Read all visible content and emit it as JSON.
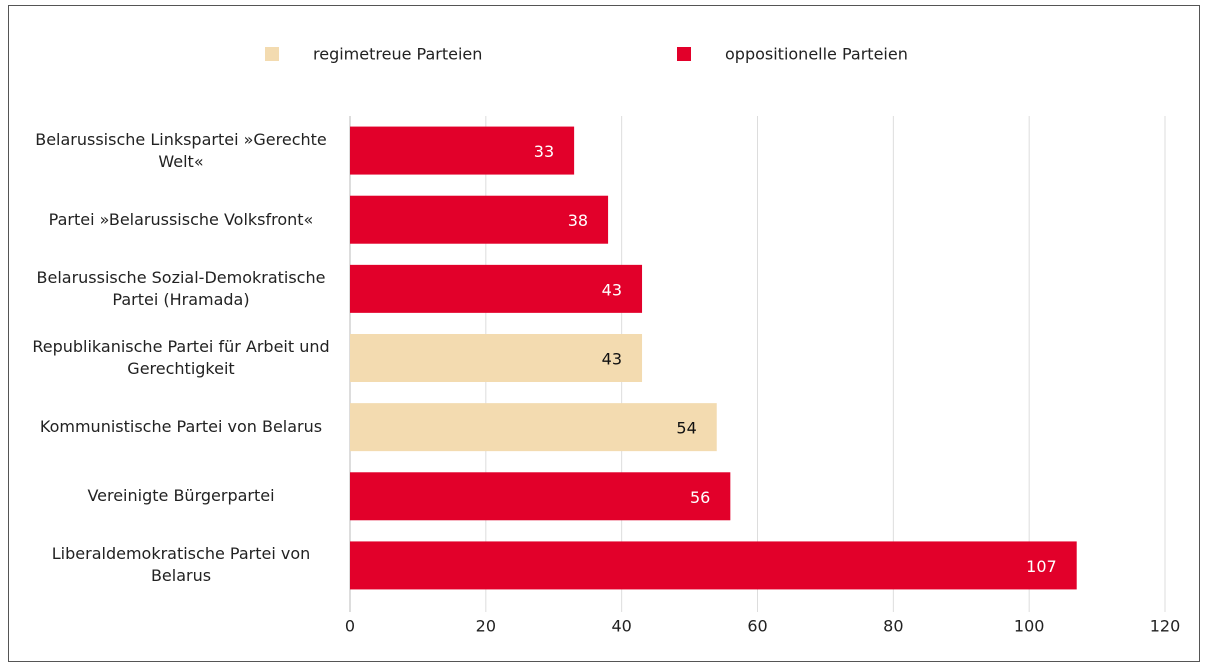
{
  "chart_data": {
    "type": "barh",
    "categories": [
      "Belarussische Linkspartei »Gerechte Welt«",
      "Partei »Belarussische Volksfront«",
      "Belarussische Sozial-Demokratische Partei (Hramada)",
      "Republikanische Partei für Arbeit und Gerechtigkeit",
      "Kommunistische Partei von Belarus",
      "Vereinigte Bürgerpartei",
      "Liberaldemokratische Partei von Belarus"
    ],
    "series": [
      {
        "name": "regimetreue Parteien",
        "color": "#f3dbb0",
        "values": [
          null,
          null,
          null,
          43,
          54,
          null,
          null
        ]
      },
      {
        "name": "oppositionelle Parteien",
        "color": "#e2002a",
        "values": [
          33,
          38,
          43,
          null,
          null,
          56,
          107
        ]
      }
    ],
    "xlim": [
      0,
      120
    ],
    "xticks": [
      0,
      20,
      40,
      60,
      80,
      100,
      120
    ],
    "grid": true,
    "legend": "top"
  }
}
